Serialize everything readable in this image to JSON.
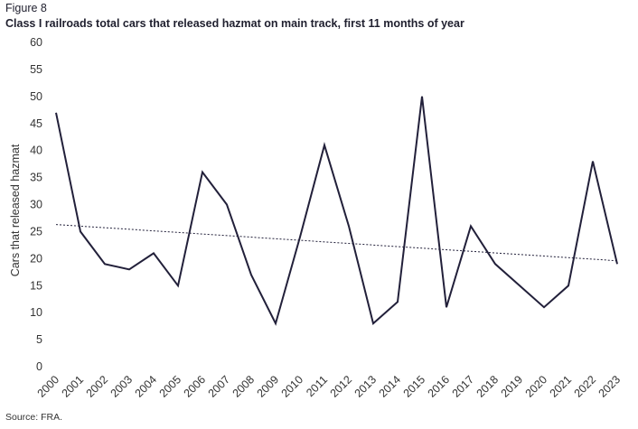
{
  "figure_label": "Figure 8",
  "title": "Class I railroads total cars that released hazmat on main track, first 11 months of year",
  "source": "Source: FRA.",
  "colors": {
    "series": "#22203a",
    "trend": "#22203a",
    "text": "#333333"
  },
  "chart_data": {
    "type": "line",
    "title": "Class I railroads total cars that released hazmat on main track, first 11 months of year",
    "xlabel": "",
    "ylabel": "Cars that released hazmat",
    "ylim": [
      0,
      60
    ],
    "yticks": [
      0,
      5,
      10,
      15,
      20,
      25,
      30,
      35,
      40,
      45,
      50,
      55,
      60
    ],
    "grid": false,
    "categories": [
      "2000",
      "2001",
      "2002",
      "2003",
      "2004",
      "2005",
      "2006",
      "2007",
      "2008",
      "2009",
      "2010",
      "2011",
      "2012",
      "2013",
      "2014",
      "2015",
      "2016",
      "2017",
      "2018",
      "2019",
      "2020",
      "2021",
      "2022",
      "2023"
    ],
    "series": [
      {
        "values": [
          47,
          25,
          19,
          18,
          21,
          15,
          36,
          30,
          17,
          8,
          24,
          41,
          26,
          8,
          12,
          50,
          11,
          26,
          19,
          15,
          11,
          15,
          38,
          19
        ]
      }
    ],
    "trendline": {
      "style": "dotted",
      "start": 26.3,
      "end": 19.6
    }
  }
}
